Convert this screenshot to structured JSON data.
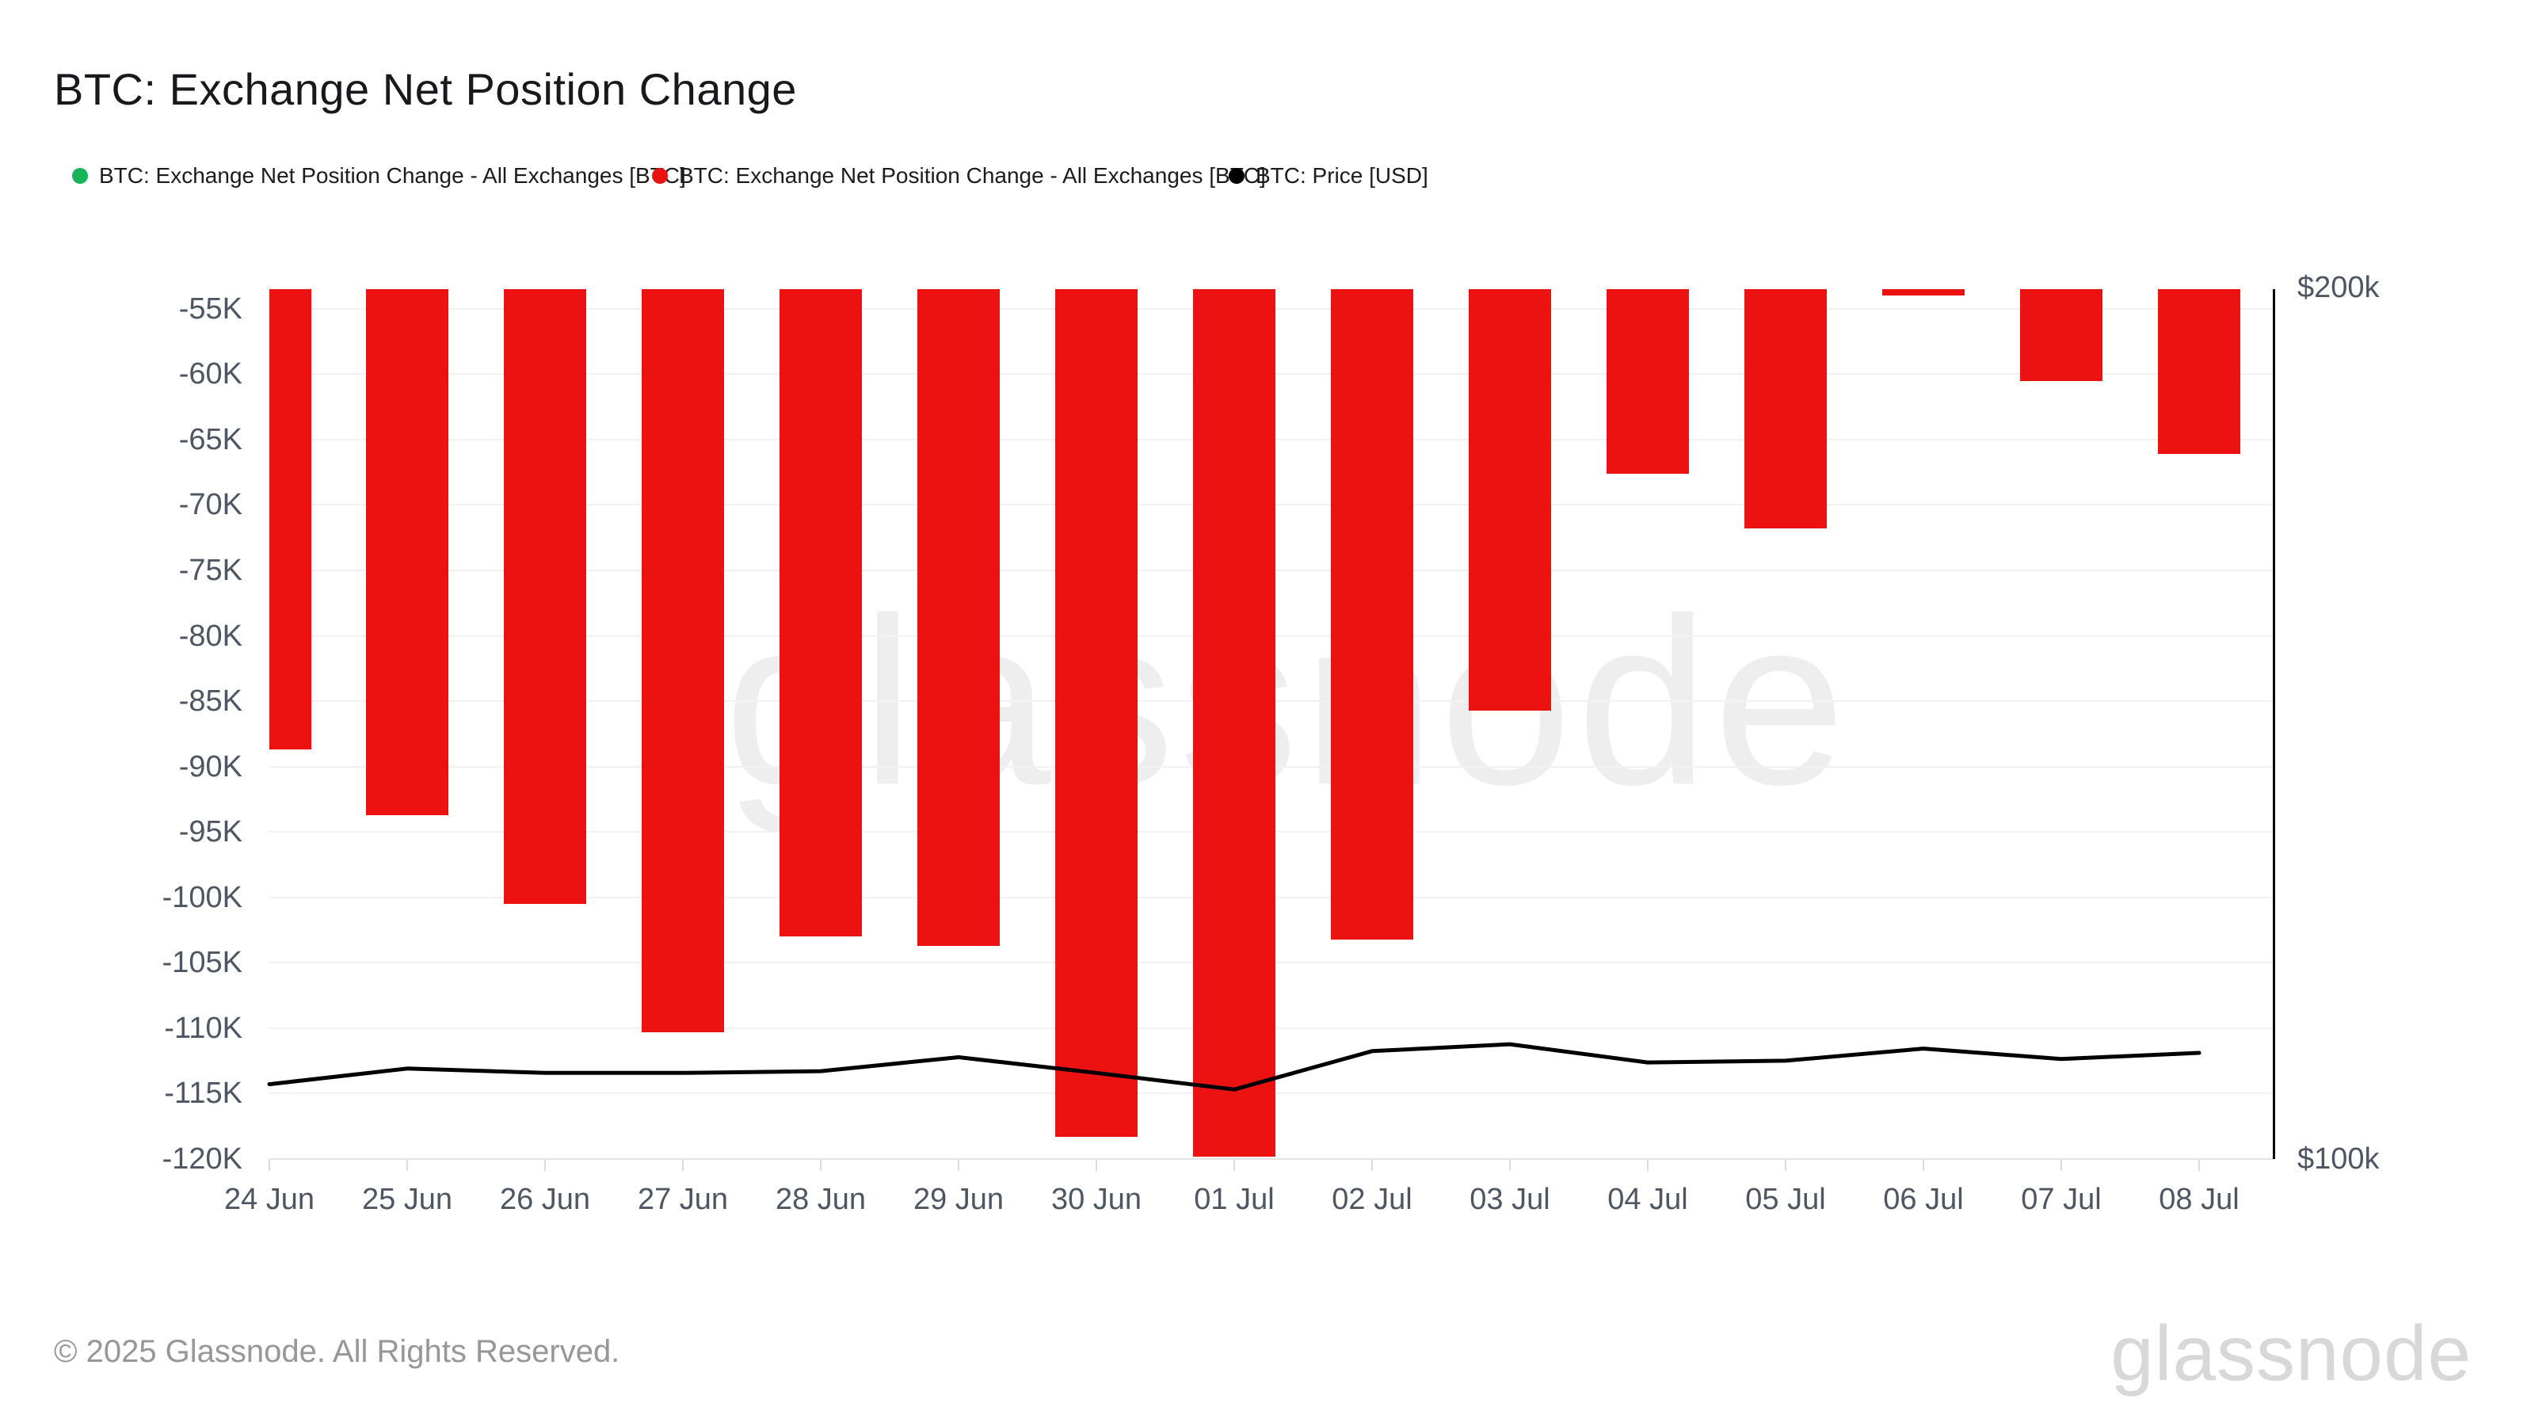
{
  "header": {
    "title": "BTC: Exchange Net Position Change"
  },
  "legend": [
    {
      "label": "BTC: Exchange Net Position Change - All Exchanges [BTC]",
      "color": "#17b45a"
    },
    {
      "label": "BTC: Exchange Net Position Change - All Exchanges [BTC]",
      "color": "#ed1212"
    },
    {
      "label": "BTC: Price [USD]",
      "color": "#000000"
    }
  ],
  "chart_data": {
    "type": "bar+line",
    "title": "BTC: Exchange Net Position Change",
    "categories": [
      "24 Jun",
      "25 Jun",
      "26 Jun",
      "27 Jun",
      "28 Jun",
      "29 Jun",
      "30 Jun",
      "01 Jul",
      "02 Jul",
      "03 Jul",
      "04 Jul",
      "05 Jul",
      "06 Jul",
      "07 Jul",
      "08 Jul"
    ],
    "series": [
      {
        "name": "BTC: Exchange Net Position Change - All Exchanges [BTC]",
        "type": "bar",
        "axis": "left",
        "color": "#ed1212",
        "unit": "K BTC",
        "values_k_btc": [
          -88.7,
          -93.7,
          -100.5,
          -110.3,
          -103.0,
          -103.7,
          -118.3,
          -119.8,
          -103.2,
          -85.7,
          -67.6,
          -71.8,
          -54.0,
          -60.5,
          -66.1
        ]
      },
      {
        "name": "BTC: Price [USD]",
        "type": "line",
        "axis": "right",
        "color": "#000000",
        "unit": "k USD",
        "values_k_usd": [
          108.6,
          110.4,
          109.9,
          109.9,
          110.1,
          111.7,
          109.9,
          108.0,
          112.4,
          113.2,
          111.1,
          111.3,
          112.7,
          111.5,
          112.2
        ]
      }
    ],
    "left_axis": {
      "tick_labels": [
        "-55K",
        "-60K",
        "-65K",
        "-70K",
        "-75K",
        "-80K",
        "-85K",
        "-90K",
        "-95K",
        "-100K",
        "-105K",
        "-110K",
        "-115K",
        "-120K"
      ],
      "tick_values_k": [
        -55,
        -60,
        -65,
        -70,
        -75,
        -80,
        -85,
        -90,
        -95,
        -100,
        -105,
        -110,
        -115,
        -120
      ],
      "range_top_k": -53.5,
      "range_bottom_k": -120
    },
    "right_axis": {
      "labels": [
        "$200k",
        "$100k"
      ],
      "range_k_usd": [
        100,
        200
      ]
    },
    "grid": true,
    "legend_position": "top"
  },
  "watermark": {
    "text": "glassnode"
  },
  "footer": {
    "copyright": "© 2025 Glassnode. All Rights Reserved.",
    "logo_text": "glassnode"
  }
}
